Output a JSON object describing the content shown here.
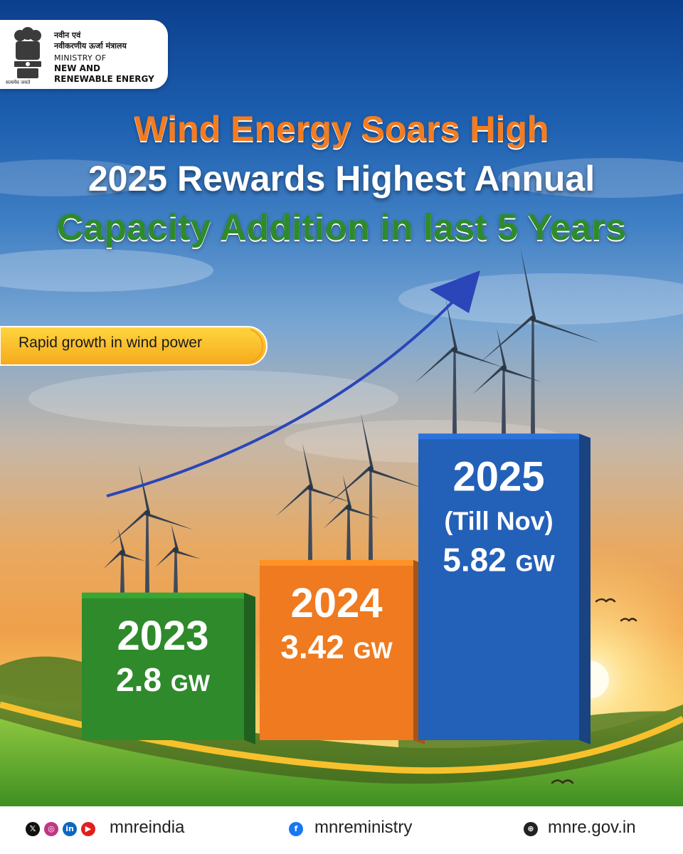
{
  "header": {
    "ministry_hindi_line1": "नवीन एवं",
    "ministry_hindi_line2": "नवीकरणीय ऊर्जा मंत्रालय",
    "ministry_english_line1": "MINISTRY OF",
    "ministry_english_line2": "NEW AND",
    "ministry_english_line3": "RENEWABLE ENERGY",
    "emblem_motto": "सत्यमेव जयते"
  },
  "headline": {
    "line1": "Wind Energy Soars High",
    "line2": "2025 Rewards Highest Annual",
    "line3": "Capacity Addition in last 5 Years"
  },
  "tag": {
    "label": "Rapid growth in wind power"
  },
  "chart_data": {
    "type": "bar",
    "categories": [
      "2023",
      "2024",
      "2025"
    ],
    "values": [
      2.8,
      3.42,
      5.82
    ],
    "unit": "GW",
    "notes": [
      "",
      "",
      "(Till Nov)"
    ],
    "colors": [
      "#2f8a2c",
      "#ef7a1f",
      "#2360b8"
    ],
    "value_labels": [
      "2.8",
      "3.42",
      "5.82"
    ]
  },
  "footer": {
    "social_handle": "mnreindia",
    "facebook_handle": "mnreministry",
    "website": "mnre.gov.in",
    "icons": [
      "x-icon",
      "instagram-icon",
      "linkedin-icon",
      "youtube-icon",
      "facebook-icon",
      "globe-icon"
    ]
  }
}
